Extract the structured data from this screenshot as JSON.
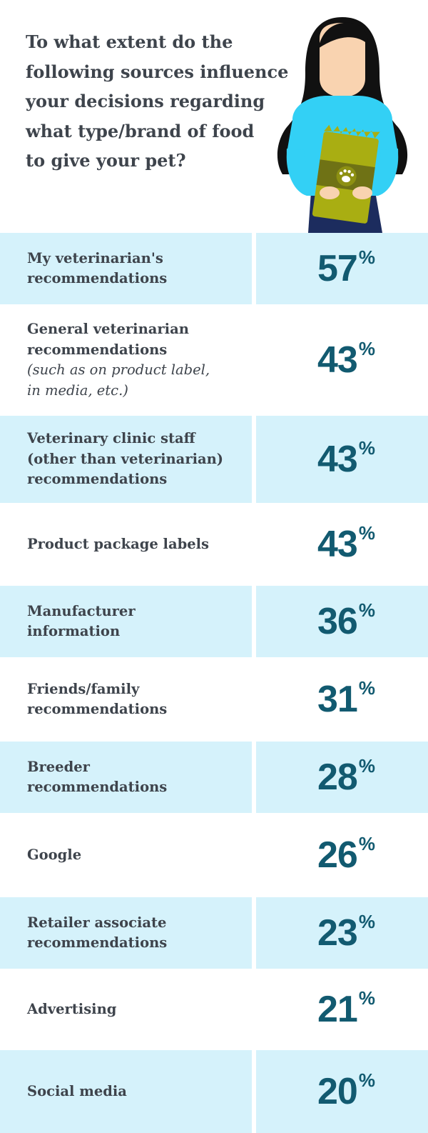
{
  "question": "To what extent do the following sources influence your decisions regarding what type/brand of food to give your pet?",
  "question_lines": [
    "To what extent do the",
    "following sources influence",
    "your decisions regarding",
    "what type/brand of food",
    "to give your pet?"
  ],
  "colors": {
    "row_shade": "#d5f2fb",
    "value_text": "#125a70",
    "label_text": "#3e444c"
  },
  "percent_symbol": "%",
  "chart_data": {
    "type": "table",
    "title": "To what extent do the following sources influence your decisions regarding what type/brand of food to give your pet?",
    "unit": "%",
    "rows": [
      {
        "label_lines": [
          "My veterinarian's",
          "recommendations"
        ],
        "note_lines": [],
        "value": 57
      },
      {
        "label_lines": [
          "General veterinarian",
          "recommendations"
        ],
        "note_lines": [
          "(such as on product label,",
          "in media, etc.)"
        ],
        "value": 43
      },
      {
        "label_lines": [
          "Veterinary clinic staff",
          "(other than veterinarian)",
          "recommendations"
        ],
        "note_lines": [],
        "value": 43
      },
      {
        "label_lines": [
          "Product package labels"
        ],
        "note_lines": [],
        "value": 43
      },
      {
        "label_lines": [
          "Manufacturer",
          "information"
        ],
        "note_lines": [],
        "value": 36
      },
      {
        "label_lines": [
          "Friends/family",
          "recommendations"
        ],
        "note_lines": [],
        "value": 31
      },
      {
        "label_lines": [
          "Breeder",
          "recommendations"
        ],
        "note_lines": [],
        "value": 28
      },
      {
        "label_lines": [
          "Google"
        ],
        "note_lines": [],
        "value": 26
      },
      {
        "label_lines": [
          "Retailer associate",
          "recommendations"
        ],
        "note_lines": [],
        "value": 23
      },
      {
        "label_lines": [
          "Advertising"
        ],
        "note_lines": [],
        "value": 21
      },
      {
        "label_lines": [
          "Social media"
        ],
        "note_lines": [],
        "value": 20
      }
    ]
  }
}
